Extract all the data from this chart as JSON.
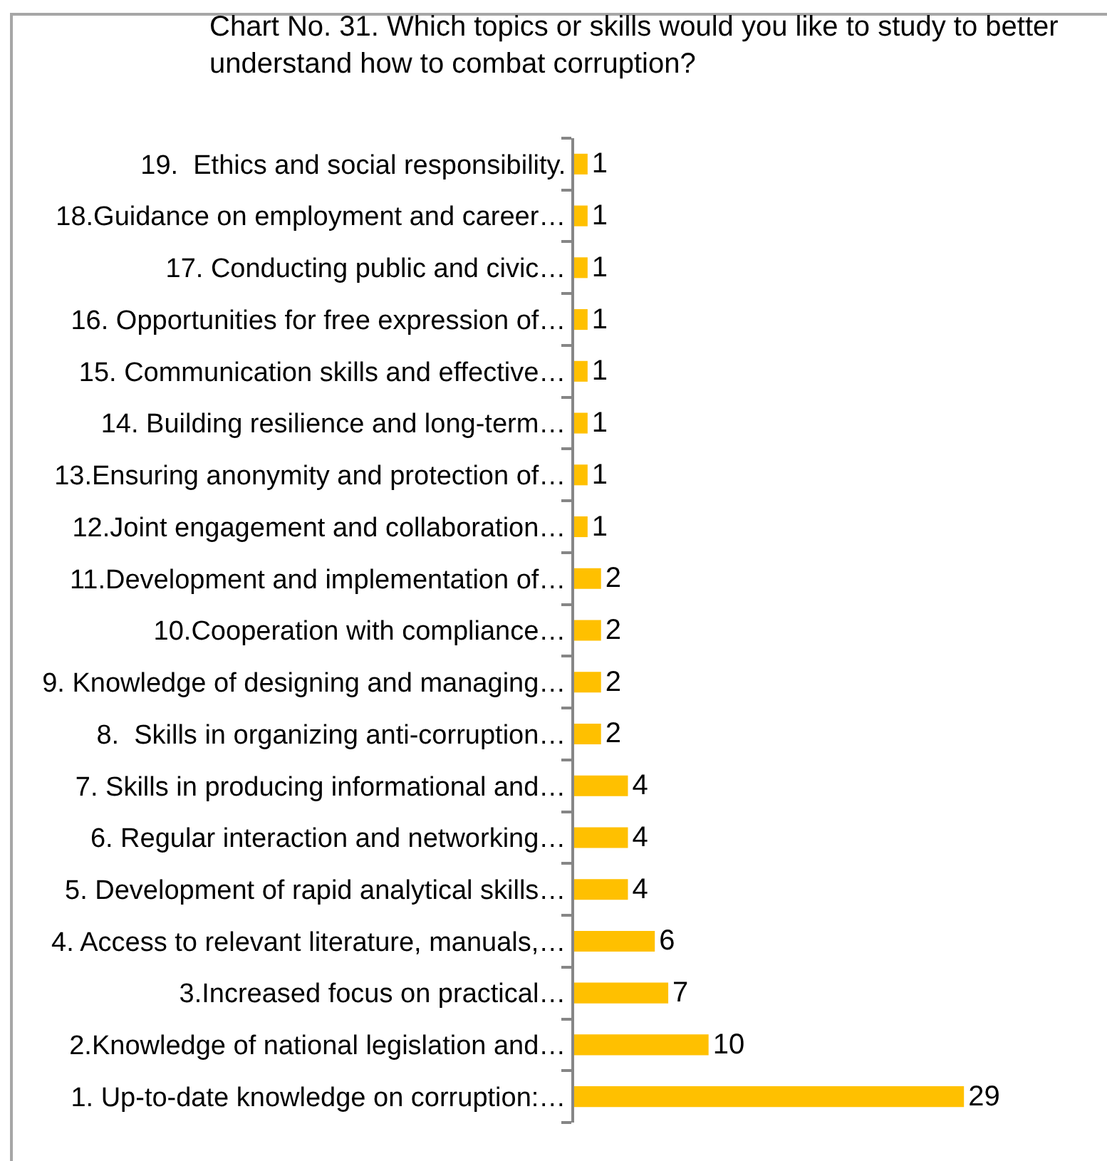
{
  "chart_data": {
    "type": "bar",
    "orientation": "horizontal",
    "title": "Chart No. 31. Which topics or skills would you like to study to better understand how to combat corruption?",
    "categories": [
      "19.  Ethics and social responsibility.",
      "18.Guidance on employment and career…",
      "17. Conducting public and civic…",
      "16. Opportunities for free expression of…",
      "15. Communication skills and effective…",
      "14. Building resilience and long-term…",
      "13.Ensuring anonymity and protection of…",
      "12.Joint engagement and collaboration…",
      "11.Development and implementation of…",
      "10.Cooperation with compliance…",
      "9. Knowledge of designing and managing…",
      "8.  Skills in organizing anti-corruption…",
      "7. Skills in producing informational and…",
      "6. Regular interaction and networking…",
      "5. Development of rapid analytical skills…",
      "4. Access to relevant literature, manuals,…",
      "3.Increased focus on practical…",
      "2.Knowledge of national legislation and…",
      "1. Up-to-date knowledge on corruption:…"
    ],
    "values": [
      1,
      1,
      1,
      1,
      1,
      1,
      1,
      1,
      2,
      2,
      2,
      2,
      4,
      4,
      4,
      6,
      7,
      10,
      29
    ],
    "color": "#ffc000",
    "data_labels": true,
    "tick_labels": "y",
    "legend": false
  }
}
